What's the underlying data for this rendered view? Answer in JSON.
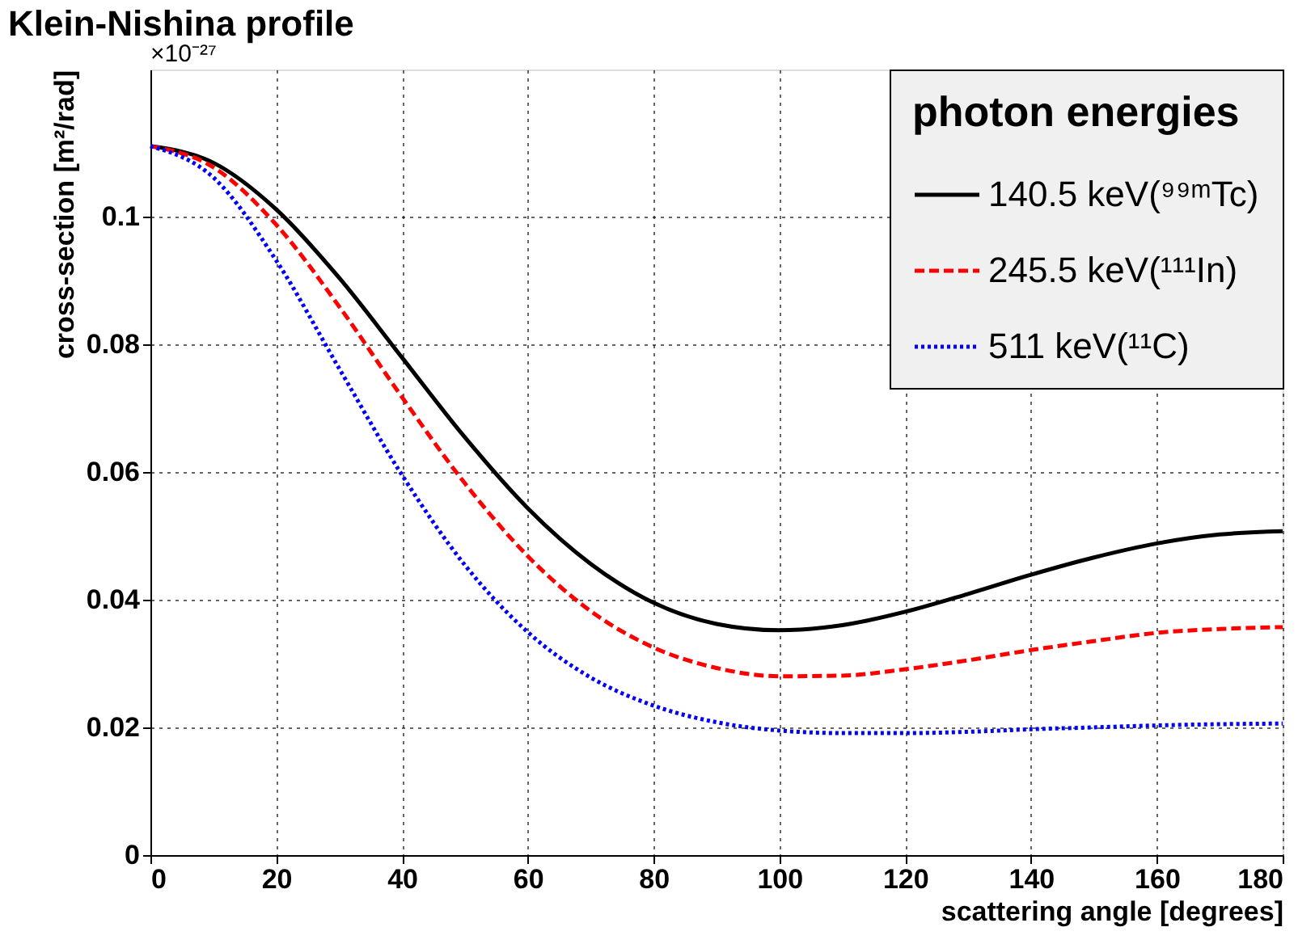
{
  "chart_data": {
    "type": "line",
    "title": "Klein-Nishina profile",
    "xlabel": "scattering angle [degrees]",
    "ylabel": "cross-section [m²/rad]",
    "legend_title": "photon energies",
    "annotations": [
      "×10⁻²⁷"
    ],
    "x": [
      0,
      10,
      20,
      30,
      40,
      50,
      60,
      70,
      80,
      90,
      100,
      110,
      120,
      130,
      140,
      150,
      160,
      170,
      180
    ],
    "series": [
      {
        "name": "140.5 keV(⁹⁹ᵐTc)",
        "color": "#000000",
        "line_style": "solid",
        "values": [
          0.111,
          0.1084,
          0.1011,
          0.0904,
          0.0779,
          0.0654,
          0.0543,
          0.0456,
          0.0395,
          0.0362,
          0.0352,
          0.036,
          0.0381,
          0.0409,
          0.0439,
          0.0466,
          0.0488,
          0.0502,
          0.0507
        ]
      },
      {
        "name": "245.5 keV(¹¹¹In)",
        "color": "#ff0000",
        "line_style": "dashed",
        "values": [
          0.111,
          0.1077,
          0.0987,
          0.0859,
          0.0717,
          0.0582,
          0.0468,
          0.0382,
          0.0325,
          0.0293,
          0.028,
          0.0281,
          0.0291,
          0.0305,
          0.0321,
          0.0335,
          0.0348,
          0.0354,
          0.0357
        ]
      },
      {
        "name": "511 keV(¹¹C)",
        "color": "#0000ff",
        "line_style": "dotted",
        "values": [
          0.111,
          0.1061,
          0.0931,
          0.0762,
          0.0595,
          0.0454,
          0.0349,
          0.0278,
          0.0234,
          0.0208,
          0.0195,
          0.0191,
          0.0191,
          0.0193,
          0.0197,
          0.02,
          0.0203,
          0.0205,
          0.0206
        ]
      }
    ],
    "xlim": [
      0,
      180
    ],
    "xticks": [
      0,
      20,
      40,
      60,
      80,
      100,
      120,
      140,
      160,
      180
    ],
    "ylim": [
      0,
      0.123
    ],
    "yticks": [
      0,
      0.02,
      0.04,
      0.06,
      0.08,
      0.1
    ],
    "grid": true,
    "legend": "top right",
    "marker": "none"
  }
}
